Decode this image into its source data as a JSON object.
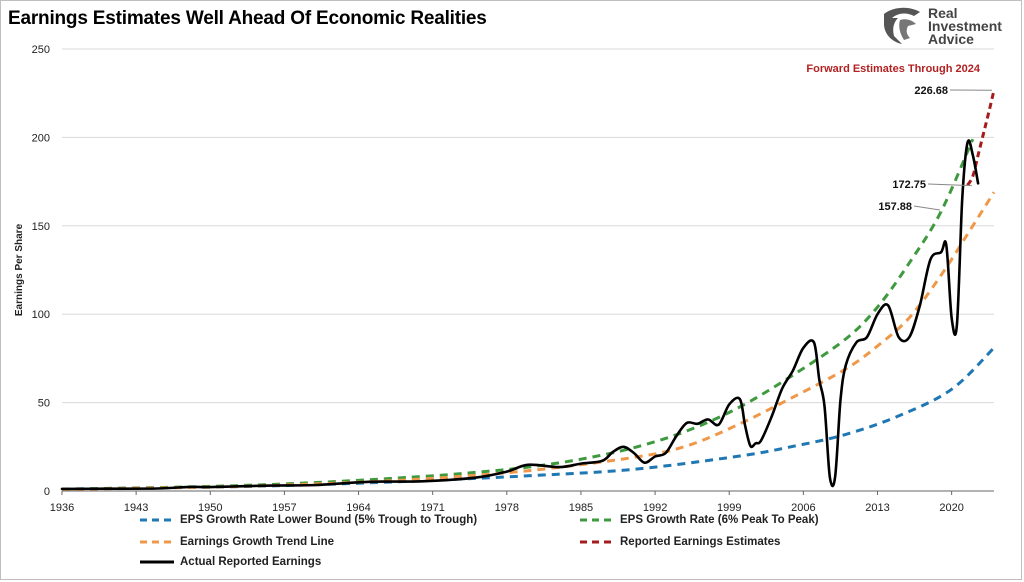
{
  "title": "Earnings Estimates Well Ahead Of Economic Realities",
  "logo": {
    "line1": "Real",
    "line2": "Investment",
    "line3": "Advice"
  },
  "colors": {
    "lower_bound": "#1f77b4",
    "peak_to_peak": "#3f9a3f",
    "trend": "#f0984a",
    "estimates": "#a51c1c",
    "actual": "#000000",
    "grid": "#d9d9d9",
    "annotation": "#b22222"
  },
  "chart_data": {
    "type": "line",
    "title": "Earnings Estimates Well Ahead Of Economic Realities",
    "xlabel": "",
    "ylabel": "Earnings Per Share",
    "xlim": [
      1936,
      2024
    ],
    "ylim": [
      0,
      250
    ],
    "grid": true,
    "x_ticks": [
      "1936",
      "1943",
      "1950",
      "1957",
      "1964",
      "1971",
      "1978",
      "1985",
      "1992",
      "1999",
      "2006",
      "2013",
      "2020"
    ],
    "y_ticks": [
      "0",
      "50",
      "100",
      "150",
      "200",
      "250"
    ],
    "legend_position": "bottom",
    "annotations": [
      {
        "text": "Forward Estimates Through 2024",
        "x": 2022,
        "y": 237
      },
      {
        "text": "226.68",
        "x": 2024,
        "y": 226.68
      },
      {
        "text": "172.75",
        "x": 2022,
        "y": 172.75
      },
      {
        "text": "157.88",
        "x": 2021,
        "y": 157.88
      }
    ],
    "series": [
      {
        "name": "EPS Growth Rate Lower Bound (5% Trough to Trough)",
        "style": "dashed",
        "x": [
          1936,
          1950,
          1960,
          1970,
          1980,
          1990,
          2000,
          2005,
          2010,
          2015,
          2020,
          2024
        ],
        "y": [
          1.1,
          2.2,
          3.6,
          5.8,
          8.6,
          12.3,
          19.8,
          25.2,
          32,
          42.5,
          57.5,
          81
        ]
      },
      {
        "name": "EPS Growth Rate (6% Peak To Peak)",
        "style": "dashed",
        "x": [
          1936,
          1950,
          1960,
          1970,
          1975,
          1980,
          1985,
          1990,
          1995,
          2000,
          2005,
          2010,
          2013,
          2016,
          2019,
          2022
        ],
        "y": [
          1.0,
          2.6,
          4.8,
          8.2,
          10.5,
          13.5,
          18,
          24.5,
          34,
          47.5,
          65.5,
          86,
          104,
          129,
          158,
          199
        ]
      },
      {
        "name": "Earnings Growth Trend Line",
        "style": "dashed",
        "x": [
          1936,
          1950,
          1960,
          1970,
          1980,
          1990,
          1995,
          2000,
          2005,
          2010,
          2013,
          2016,
          2019,
          2022,
          2024
        ],
        "y": [
          0.9,
          2.2,
          4,
          6.8,
          11.5,
          19,
          25.5,
          38,
          53,
          69,
          82,
          98,
          122,
          150,
          169
        ]
      },
      {
        "name": "Reported Earnings Estimates",
        "style": "dashed",
        "x": [
          2021.5,
          2022,
          2022.5,
          2023,
          2023.5,
          2024
        ],
        "y": [
          173,
          178,
          190,
          202,
          214,
          226.68
        ]
      },
      {
        "name": "Actual Reported Earnings",
        "style": "solid",
        "x": [
          1936,
          1940,
          1945,
          1948,
          1950,
          1955,
          1960,
          1965,
          1970,
          1975,
          1978,
          1980,
          1983,
          1985,
          1987,
          1988,
          1989,
          1990,
          1991,
          1992,
          1993,
          1994,
          1995,
          1996,
          1997,
          1998,
          1999,
          2000,
          2000.5,
          2001,
          2001.5,
          2002,
          2003,
          2004,
          2005,
          2006,
          2007,
          2007.5,
          2008,
          2008.5,
          2009,
          2009.5,
          2010,
          2011,
          2012,
          2013,
          2014,
          2015,
          2016,
          2017,
          2018,
          2019,
          2019.5,
          2020,
          2020.5,
          2021,
          2021.5,
          2022,
          2022.5
        ],
        "y": [
          1.2,
          1.3,
          1.4,
          2.3,
          2.2,
          3.0,
          3.4,
          5.2,
          5.5,
          7.5,
          11,
          14.8,
          13.5,
          15.5,
          17,
          22,
          25,
          21.5,
          16,
          19.5,
          21.5,
          31,
          38.5,
          38,
          40.5,
          37.5,
          49,
          52,
          37,
          25.5,
          27,
          28.5,
          42,
          58,
          68,
          81,
          84,
          63,
          48,
          8,
          8,
          51,
          71,
          84,
          87,
          100,
          105,
          87,
          87,
          105,
          131,
          135,
          139,
          98,
          94,
          165,
          197,
          190,
          174
        ]
      }
    ]
  }
}
